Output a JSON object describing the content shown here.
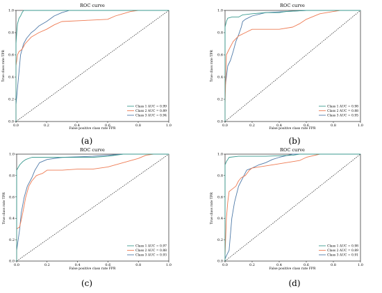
{
  "figure": {
    "panels": [
      {
        "label": "(a)"
      },
      {
        "label": "(b)"
      },
      {
        "label": "(c)"
      },
      {
        "label": "(d)"
      }
    ]
  },
  "chart_data": [
    {
      "type": "line",
      "panel": "(a)",
      "title": "ROC curve",
      "xlabel": "False positive class rate FPR",
      "ylabel": "True class rate TPR",
      "xlim": [
        0,
        1
      ],
      "ylim": [
        0,
        1
      ],
      "xticks": [
        "0.0",
        "0.2",
        "0.4",
        "0.6",
        "0.8",
        "1.0"
      ],
      "yticks": [
        "0.0",
        "0.2",
        "0.4",
        "0.6",
        "0.8",
        "1.0"
      ],
      "grid": false,
      "legend_position": "bottom-right",
      "diagonal": true,
      "series": [
        {
          "name": "Class 1 AUC = 0.99",
          "color": "#3a9a8f",
          "points": [
            [
              0,
              0
            ],
            [
              0,
              0.7
            ],
            [
              0.005,
              0.8
            ],
            [
              0.01,
              0.88
            ],
            [
              0.02,
              0.93
            ],
            [
              0.03,
              0.95
            ],
            [
              0.04,
              0.98
            ],
            [
              0.05,
              1.0
            ],
            [
              1,
              1
            ]
          ]
        },
        {
          "name": "Class 2 AUC = 0.89",
          "color": "#ee7a52",
          "points": [
            [
              0,
              0
            ],
            [
              0,
              0.5
            ],
            [
              0.01,
              0.6
            ],
            [
              0.02,
              0.63
            ],
            [
              0.04,
              0.65
            ],
            [
              0.06,
              0.7
            ],
            [
              0.1,
              0.76
            ],
            [
              0.15,
              0.8
            ],
            [
              0.2,
              0.83
            ],
            [
              0.25,
              0.87
            ],
            [
              0.3,
              0.9
            ],
            [
              0.45,
              0.91
            ],
            [
              0.6,
              0.92
            ],
            [
              0.65,
              0.95
            ],
            [
              0.7,
              0.97
            ],
            [
              0.75,
              0.99
            ],
            [
              0.8,
              1.0
            ],
            [
              1,
              1
            ]
          ]
        },
        {
          "name": "Class 3 AUC = 0.94",
          "color": "#4f7aa8",
          "points": [
            [
              0,
              0
            ],
            [
              0,
              0.15
            ],
            [
              0.01,
              0.3
            ],
            [
              0.02,
              0.45
            ],
            [
              0.03,
              0.6
            ],
            [
              0.05,
              0.7
            ],
            [
              0.07,
              0.75
            ],
            [
              0.1,
              0.8
            ],
            [
              0.12,
              0.82
            ],
            [
              0.15,
              0.86
            ],
            [
              0.2,
              0.9
            ],
            [
              0.25,
              0.95
            ],
            [
              0.3,
              0.98
            ],
            [
              0.35,
              1.0
            ],
            [
              1,
              1
            ]
          ]
        }
      ]
    },
    {
      "type": "line",
      "panel": "(b)",
      "title": "ROC curve",
      "xlabel": "False positive class rate FPR",
      "ylabel": "True class rate TPR",
      "xlim": [
        0,
        1
      ],
      "ylim": [
        0,
        1
      ],
      "xticks": [
        "0.0",
        "0.2",
        "0.4",
        "0.6",
        "0.8",
        "1.0"
      ],
      "yticks": [
        "0.0",
        "0.2",
        "0.4",
        "0.6",
        "0.8",
        "1.0"
      ],
      "grid": false,
      "legend_position": "bottom-right",
      "diagonal": true,
      "series": [
        {
          "name": "Class 1 AUC = 0.98",
          "color": "#3a9a8f",
          "points": [
            [
              0,
              0
            ],
            [
              0,
              0.85
            ],
            [
              0.01,
              0.9
            ],
            [
              0.02,
              0.93
            ],
            [
              0.05,
              0.94
            ],
            [
              0.1,
              0.94
            ],
            [
              0.13,
              0.96
            ],
            [
              0.2,
              0.97
            ],
            [
              0.3,
              0.98
            ],
            [
              0.4,
              0.98
            ],
            [
              0.45,
              0.99
            ],
            [
              0.6,
              1.0
            ],
            [
              1,
              1
            ]
          ]
        },
        {
          "name": "Class 2 AUC = 0.88",
          "color": "#ee7a52",
          "points": [
            [
              0,
              0
            ],
            [
              0,
              0.15
            ],
            [
              0.01,
              0.6
            ],
            [
              0.03,
              0.65
            ],
            [
              0.06,
              0.72
            ],
            [
              0.1,
              0.77
            ],
            [
              0.15,
              0.8
            ],
            [
              0.2,
              0.83
            ],
            [
              0.35,
              0.83
            ],
            [
              0.4,
              0.83
            ],
            [
              0.5,
              0.85
            ],
            [
              0.55,
              0.88
            ],
            [
              0.6,
              0.92
            ],
            [
              0.7,
              0.97
            ],
            [
              0.8,
              0.99
            ],
            [
              0.85,
              1.0
            ],
            [
              1,
              1
            ]
          ]
        },
        {
          "name": "Class 3 AUC = 0.95",
          "color": "#4f7aa8",
          "points": [
            [
              0,
              0
            ],
            [
              0,
              0.3
            ],
            [
              0.01,
              0.4
            ],
            [
              0.02,
              0.5
            ],
            [
              0.04,
              0.55
            ],
            [
              0.06,
              0.63
            ],
            [
              0.08,
              0.72
            ],
            [
              0.1,
              0.78
            ],
            [
              0.12,
              0.85
            ],
            [
              0.13,
              0.9
            ],
            [
              0.15,
              0.92
            ],
            [
              0.2,
              0.95
            ],
            [
              0.3,
              0.98
            ],
            [
              0.6,
              1.0
            ],
            [
              1,
              1
            ]
          ]
        }
      ]
    },
    {
      "type": "line",
      "panel": "(c)",
      "title": "ROC curve",
      "xlabel": "False positive class rate FPR",
      "ylabel": "True class rate TPR",
      "xlim": [
        0,
        1
      ],
      "ylim": [
        0,
        1
      ],
      "xticks": [
        "0.0",
        "0.2",
        "0.4",
        "0.6",
        "0.8",
        "1.0"
      ],
      "yticks": [
        "0.0",
        "0.2",
        "0.4",
        "0.6",
        "0.8",
        "1.0"
      ],
      "grid": false,
      "legend_position": "bottom-right",
      "diagonal": true,
      "series": [
        {
          "name": "Class 1 AUC = 0.97",
          "color": "#3a9a8f",
          "points": [
            [
              0,
              0
            ],
            [
              0,
              0.85
            ],
            [
              0.02,
              0.9
            ],
            [
              0.04,
              0.93
            ],
            [
              0.06,
              0.95
            ],
            [
              0.1,
              0.97
            ],
            [
              0.2,
              0.97
            ],
            [
              0.5,
              0.97
            ],
            [
              0.6,
              0.98
            ],
            [
              0.7,
              1.0
            ],
            [
              1,
              1
            ]
          ]
        },
        {
          "name": "Class 2 AUC = 0.88",
          "color": "#ee7a52",
          "points": [
            [
              0,
              0
            ],
            [
              0,
              0.3
            ],
            [
              0.02,
              0.32
            ],
            [
              0.04,
              0.45
            ],
            [
              0.06,
              0.6
            ],
            [
              0.08,
              0.7
            ],
            [
              0.1,
              0.75
            ],
            [
              0.13,
              0.8
            ],
            [
              0.17,
              0.82
            ],
            [
              0.2,
              0.85
            ],
            [
              0.3,
              0.85
            ],
            [
              0.4,
              0.86
            ],
            [
              0.5,
              0.86
            ],
            [
              0.6,
              0.88
            ],
            [
              0.7,
              0.92
            ],
            [
              0.8,
              0.96
            ],
            [
              0.85,
              0.99
            ],
            [
              0.9,
              1.0
            ],
            [
              1,
              1
            ]
          ]
        },
        {
          "name": "Class 3 AUC = 0.93",
          "color": "#4f7aa8",
          "points": [
            [
              0,
              0
            ],
            [
              0,
              0.1
            ],
            [
              0.01,
              0.2
            ],
            [
              0.02,
              0.3
            ],
            [
              0.03,
              0.45
            ],
            [
              0.05,
              0.6
            ],
            [
              0.07,
              0.7
            ],
            [
              0.1,
              0.78
            ],
            [
              0.12,
              0.85
            ],
            [
              0.15,
              0.92
            ],
            [
              0.2,
              0.95
            ],
            [
              0.3,
              0.97
            ],
            [
              0.5,
              0.98
            ],
            [
              0.7,
              1.0
            ],
            [
              1,
              1
            ]
          ]
        }
      ]
    },
    {
      "type": "line",
      "panel": "(d)",
      "title": "ROC curve",
      "xlabel": "False positive class rate FPR",
      "ylabel": "True class rate TPR",
      "xlim": [
        0,
        1
      ],
      "ylim": [
        0,
        1
      ],
      "xticks": [
        "0.0",
        "0.2",
        "0.4",
        "0.6",
        "0.8",
        "1.0"
      ],
      "yticks": [
        "0.0",
        "0.2",
        "0.4",
        "0.6",
        "0.8",
        "1.0"
      ],
      "grid": false,
      "legend_position": "bottom-right",
      "diagonal": true,
      "series": [
        {
          "name": "Class 1 AUC = 0.98",
          "color": "#3a9a8f",
          "points": [
            [
              0,
              0
            ],
            [
              0,
              0.9
            ],
            [
              0.01,
              0.93
            ],
            [
              0.02,
              0.95
            ],
            [
              0.03,
              0.97
            ],
            [
              0.1,
              0.98
            ],
            [
              0.3,
              0.98
            ],
            [
              0.5,
              0.99
            ],
            [
              0.55,
              1.0
            ],
            [
              1,
              1
            ]
          ]
        },
        {
          "name": "Class 2 AUC = 0.89",
          "color": "#ee7a52",
          "points": [
            [
              0,
              0
            ],
            [
              0,
              0.05
            ],
            [
              0.01,
              0.4
            ],
            [
              0.02,
              0.55
            ],
            [
              0.03,
              0.65
            ],
            [
              0.05,
              0.67
            ],
            [
              0.08,
              0.7
            ],
            [
              0.1,
              0.75
            ],
            [
              0.12,
              0.78
            ],
            [
              0.15,
              0.8
            ],
            [
              0.18,
              0.85
            ],
            [
              0.2,
              0.87
            ],
            [
              0.25,
              0.88
            ],
            [
              0.35,
              0.9
            ],
            [
              0.45,
              0.92
            ],
            [
              0.55,
              0.94
            ],
            [
              0.6,
              0.97
            ],
            [
              0.7,
              1.0
            ],
            [
              1,
              1
            ]
          ]
        },
        {
          "name": "Class 3 AUC = 0.91",
          "color": "#4f7aa8",
          "points": [
            [
              0,
              0
            ],
            [
              0,
              0.02
            ],
            [
              0.01,
              0.05
            ],
            [
              0.03,
              0.1
            ],
            [
              0.05,
              0.4
            ],
            [
              0.07,
              0.55
            ],
            [
              0.09,
              0.65
            ],
            [
              0.1,
              0.7
            ],
            [
              0.12,
              0.75
            ],
            [
              0.14,
              0.8
            ],
            [
              0.16,
              0.85
            ],
            [
              0.2,
              0.87
            ],
            [
              0.25,
              0.9
            ],
            [
              0.3,
              0.92
            ],
            [
              0.35,
              0.95
            ],
            [
              0.4,
              0.97
            ],
            [
              0.5,
              1.0
            ],
            [
              1,
              1
            ]
          ]
        }
      ]
    }
  ]
}
